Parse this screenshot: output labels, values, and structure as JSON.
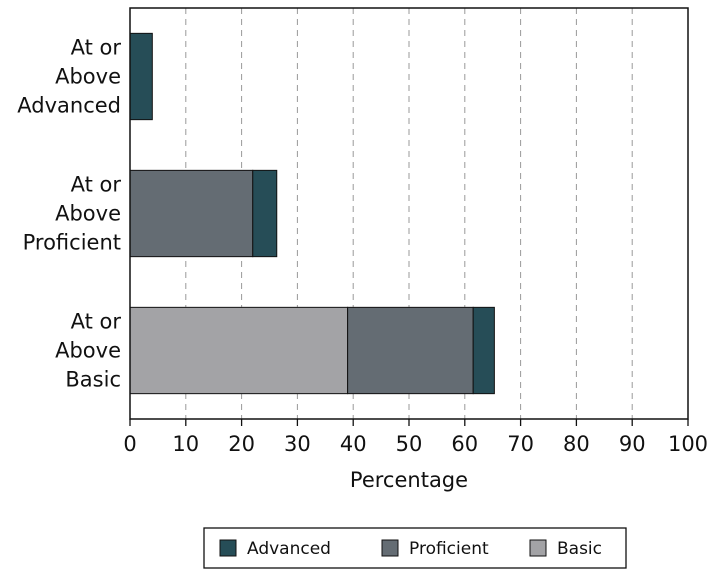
{
  "chart_data": {
    "type": "bar",
    "orientation": "horizontal",
    "stacked": true,
    "categories": [
      [
        "At or",
        "Above",
        "Advanced"
      ],
      [
        "At or",
        "Above",
        "Proficient"
      ],
      [
        "At or",
        "Above",
        "Basic"
      ]
    ],
    "series": [
      {
        "name": "Basic",
        "values": [
          0,
          0,
          39
        ],
        "color": "#a3a3a6"
      },
      {
        "name": "Proficient",
        "values": [
          0,
          22,
          22.5
        ],
        "color": "#646c73"
      },
      {
        "name": "Advanced",
        "values": [
          4,
          4.3,
          3.8
        ],
        "color": "#264d57"
      }
    ],
    "xlabel": "Percentage",
    "xlim": [
      0,
      100
    ],
    "xticks": [
      "0",
      "10",
      "20",
      "30",
      "40",
      "50",
      "60",
      "70",
      "80",
      "90",
      "100"
    ],
    "grid": "vertical dashed",
    "legend": {
      "placement": "bottom-center",
      "order": [
        "Advanced",
        "Proficient",
        "Basic"
      ]
    }
  }
}
